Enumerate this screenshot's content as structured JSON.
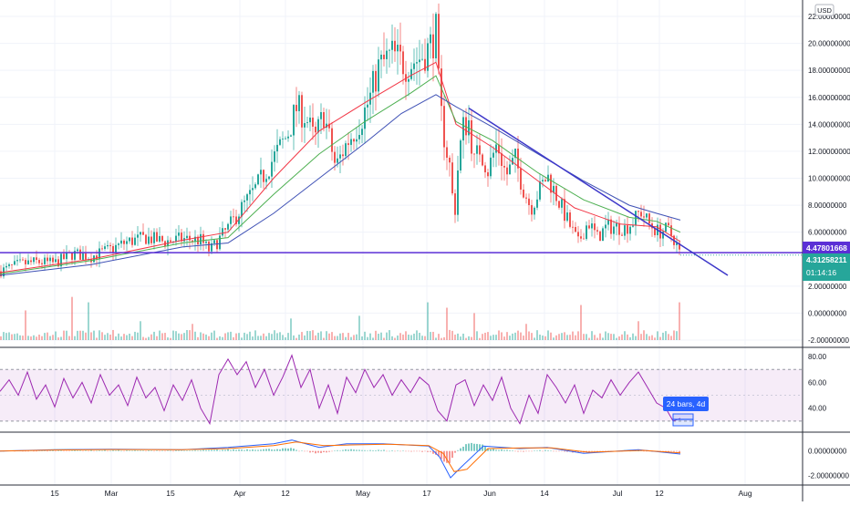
{
  "currency": "USD",
  "colors": {
    "up": "#26a69a",
    "down": "#ef5350",
    "ma_fast": "#f23645",
    "ma_mid": "#4caf50",
    "ma_slow": "#3f51b5",
    "trendline": "#3d37c9",
    "hline": "#5b2fd6",
    "rsi": "#9c27b0",
    "rsi_band": "#9c27b0",
    "macd": "#2962ff",
    "signal": "#ff6d00",
    "grid": "#f0f3fa"
  },
  "price_labels": {
    "hline_price": "4.47801668",
    "last_price": "4.31258211",
    "countdown": "01:14:16"
  },
  "measure_label": "24 bars, 4d",
  "chart_data": [
    {
      "id": "price",
      "type": "candlestick",
      "x_tick_labels": [
        "15",
        "Mar",
        "15",
        "Apr",
        "12",
        "May",
        "17",
        "Jun",
        "14",
        "Jul",
        "12",
        "Aug"
      ],
      "y_tick_labels": [
        "22.00000000",
        "20.00000000",
        "18.00000000",
        "16.00000000",
        "14.00000000",
        "12.00000000",
        "10.00000000",
        "8.00000000",
        "6.00000000",
        "2.00000000",
        "0.00000000",
        "-2.00000000"
      ],
      "ylim": [
        -2,
        22
      ],
      "close_path": [
        [
          0,
          3.1
        ],
        [
          20,
          3.6
        ],
        [
          40,
          3.8
        ],
        [
          60,
          3.7
        ],
        [
          80,
          4.4
        ],
        [
          100,
          4.2
        ],
        [
          120,
          4.7
        ],
        [
          140,
          5.3
        ],
        [
          160,
          5.6
        ],
        [
          180,
          5.3
        ],
        [
          200,
          5.5
        ],
        [
          220,
          5.4
        ],
        [
          230,
          4.6
        ],
        [
          250,
          6.3
        ],
        [
          265,
          7.8
        ],
        [
          280,
          9.2
        ],
        [
          300,
          11.5
        ],
        [
          315,
          13.2
        ],
        [
          325,
          15.2
        ],
        [
          335,
          14.6
        ],
        [
          345,
          12.8
        ],
        [
          355,
          14.8
        ],
        [
          368,
          10.8
        ],
        [
          380,
          12.6
        ],
        [
          395,
          14.2
        ],
        [
          405,
          15.8
        ],
        [
          415,
          18.2
        ],
        [
          430,
          19.2
        ],
        [
          445,
          18.4
        ],
        [
          460,
          18.9
        ],
        [
          470,
          19.6
        ],
        [
          478,
          20.8
        ],
        [
          482,
          15.6
        ],
        [
          488,
          12.6
        ],
        [
          494,
          10.6
        ],
        [
          498,
          6.8
        ],
        [
          503,
          11.6
        ],
        [
          508,
          13.8
        ],
        [
          514,
          14.2
        ],
        [
          520,
          11.2
        ],
        [
          526,
          12.2
        ],
        [
          535,
          10.6
        ],
        [
          545,
          12.6
        ],
        [
          555,
          10.2
        ],
        [
          565,
          11.4
        ],
        [
          573,
          9.4
        ],
        [
          582,
          7.8
        ],
        [
          590,
          8.9
        ],
        [
          600,
          10.2
        ],
        [
          612,
          8.4
        ],
        [
          624,
          6.6
        ],
        [
          634,
          5.2
        ],
        [
          645,
          6.8
        ],
        [
          655,
          5.6
        ],
        [
          665,
          6.4
        ],
        [
          675,
          6.4
        ],
        [
          685,
          6.3
        ],
        [
          695,
          6.8
        ],
        [
          702,
          7.6
        ],
        [
          712,
          6.6
        ],
        [
          722,
          6.0
        ],
        [
          732,
          6.2
        ],
        [
          740,
          5.4
        ],
        [
          746,
          4.3
        ]
      ],
      "moving_averages": [
        {
          "points": [
            [
              0,
              3.0
            ],
            [
              100,
              4.0
            ],
            [
              200,
              5.4
            ],
            [
              250,
              6.0
            ],
            [
              300,
              10.0
            ],
            [
              350,
              13.5
            ],
            [
              400,
              15.6
            ],
            [
              450,
              17.6
            ],
            [
              478,
              18.6
            ],
            [
              500,
              14.0
            ],
            [
              540,
              12.3
            ],
            [
              590,
              9.8
            ],
            [
              630,
              7.8
            ],
            [
              680,
              6.6
            ],
            [
              720,
              6.4
            ],
            [
              746,
              5.3
            ]
          ]
        },
        {
          "points": [
            [
              0,
              2.9
            ],
            [
              100,
              3.9
            ],
            [
              200,
              5.2
            ],
            [
              250,
              5.6
            ],
            [
              300,
              8.8
            ],
            [
              350,
              11.8
            ],
            [
              400,
              14.2
            ],
            [
              450,
              16.3
            ],
            [
              478,
              17.6
            ],
            [
              500,
              14.2
            ],
            [
              540,
              12.8
            ],
            [
              590,
              10.4
            ],
            [
              640,
              8.4
            ],
            [
              690,
              7.1
            ],
            [
              720,
              6.8
            ],
            [
              746,
              6.0
            ]
          ]
        },
        {
          "points": [
            [
              0,
              2.8
            ],
            [
              100,
              3.6
            ],
            [
              200,
              4.9
            ],
            [
              250,
              5.2
            ],
            [
              300,
              7.4
            ],
            [
              350,
              10.0
            ],
            [
              400,
              12.6
            ],
            [
              440,
              14.8
            ],
            [
              478,
              16.2
            ],
            [
              500,
              15.3
            ],
            [
              540,
              13.8
            ],
            [
              590,
              11.8
            ],
            [
              640,
              9.8
            ],
            [
              690,
              8.0
            ],
            [
              720,
              7.4
            ],
            [
              746,
              6.9
            ]
          ]
        }
      ],
      "trendline": {
        "from": [
          514,
          15.2
        ],
        "to": [
          798,
          2.8
        ]
      },
      "horizontal_line": 4.48,
      "volume_spikes": [
        [
          28,
          2.2
        ],
        [
          78,
          3.2
        ],
        [
          96,
          2.8
        ],
        [
          155,
          1.4
        ],
        [
          210,
          1.2
        ],
        [
          320,
          1.6
        ],
        [
          395,
          1.8
        ],
        [
          470,
          2.8
        ],
        [
          490,
          2.4
        ],
        [
          520,
          2.0
        ],
        [
          578,
          1.2
        ],
        [
          636,
          2.6
        ],
        [
          700,
          1.4
        ],
        [
          744,
          3.6
        ],
        [
          746,
          2.8
        ]
      ]
    },
    {
      "id": "rsi",
      "type": "line",
      "y_tick_labels": [
        "80.00",
        "60.00",
        "40.00"
      ],
      "ylim": [
        20,
        85
      ],
      "band": [
        30,
        70
      ],
      "points": [
        [
          0,
          53
        ],
        [
          10,
          62
        ],
        [
          20,
          50
        ],
        [
          30,
          68
        ],
        [
          40,
          47
        ],
        [
          50,
          58
        ],
        [
          60,
          41
        ],
        [
          70,
          63
        ],
        [
          80,
          48
        ],
        [
          90,
          60
        ],
        [
          100,
          44
        ],
        [
          110,
          66
        ],
        [
          120,
          50
        ],
        [
          130,
          58
        ],
        [
          140,
          42
        ],
        [
          150,
          64
        ],
        [
          160,
          48
        ],
        [
          170,
          56
        ],
        [
          180,
          38
        ],
        [
          190,
          58
        ],
        [
          200,
          46
        ],
        [
          210,
          62
        ],
        [
          220,
          40
        ],
        [
          230,
          28
        ],
        [
          240,
          66
        ],
        [
          250,
          78
        ],
        [
          260,
          66
        ],
        [
          270,
          76
        ],
        [
          280,
          56
        ],
        [
          290,
          70
        ],
        [
          300,
          50
        ],
        [
          310,
          64
        ],
        [
          320,
          81
        ],
        [
          330,
          56
        ],
        [
          340,
          70
        ],
        [
          350,
          40
        ],
        [
          360,
          58
        ],
        [
          370,
          36
        ],
        [
          380,
          64
        ],
        [
          390,
          52
        ],
        [
          400,
          70
        ],
        [
          410,
          56
        ],
        [
          420,
          66
        ],
        [
          430,
          50
        ],
        [
          440,
          62
        ],
        [
          450,
          52
        ],
        [
          460,
          64
        ],
        [
          470,
          58
        ],
        [
          480,
          38
        ],
        [
          490,
          30
        ],
        [
          500,
          58
        ],
        [
          510,
          62
        ],
        [
          520,
          42
        ],
        [
          530,
          58
        ],
        [
          540,
          46
        ],
        [
          550,
          64
        ],
        [
          560,
          40
        ],
        [
          570,
          28
        ],
        [
          580,
          50
        ],
        [
          590,
          36
        ],
        [
          600,
          66
        ],
        [
          610,
          56
        ],
        [
          620,
          44
        ],
        [
          630,
          58
        ],
        [
          640,
          36
        ],
        [
          650,
          54
        ],
        [
          660,
          48
        ],
        [
          670,
          62
        ],
        [
          680,
          50
        ],
        [
          690,
          60
        ],
        [
          700,
          68
        ],
        [
          710,
          56
        ],
        [
          720,
          44
        ],
        [
          730,
          40
        ],
        [
          738,
          30
        ],
        [
          746,
          32
        ]
      ]
    },
    {
      "id": "macd",
      "type": "histogram",
      "y_tick_labels": [
        "0.00000000",
        "-2.00000000"
      ],
      "ylim": [
        -2.8,
        1.4
      ],
      "macd_points": [
        [
          0,
          0.0
        ],
        [
          60,
          0.1
        ],
        [
          120,
          0.15
        ],
        [
          200,
          0.1
        ],
        [
          250,
          0.3
        ],
        [
          300,
          0.6
        ],
        [
          320,
          0.9
        ],
        [
          350,
          0.3
        ],
        [
          380,
          0.6
        ],
        [
          420,
          0.6
        ],
        [
          470,
          0.4
        ],
        [
          482,
          -0.5
        ],
        [
          494,
          -2.2
        ],
        [
          506,
          -1.3
        ],
        [
          530,
          0.4
        ],
        [
          570,
          0.2
        ],
        [
          600,
          0.3
        ],
        [
          640,
          -0.2
        ],
        [
          700,
          0.1
        ],
        [
          746,
          -0.25
        ]
      ],
      "signal_points": [
        [
          0,
          0.0
        ],
        [
          60,
          0.08
        ],
        [
          120,
          0.12
        ],
        [
          200,
          0.1
        ],
        [
          250,
          0.2
        ],
        [
          300,
          0.45
        ],
        [
          325,
          0.75
        ],
        [
          355,
          0.45
        ],
        [
          385,
          0.5
        ],
        [
          425,
          0.55
        ],
        [
          470,
          0.45
        ],
        [
          486,
          -0.2
        ],
        [
          498,
          -1.7
        ],
        [
          512,
          -1.5
        ],
        [
          535,
          0.2
        ],
        [
          575,
          0.25
        ],
        [
          605,
          0.25
        ],
        [
          645,
          -0.1
        ],
        [
          705,
          0.05
        ],
        [
          746,
          -0.15
        ]
      ]
    }
  ]
}
